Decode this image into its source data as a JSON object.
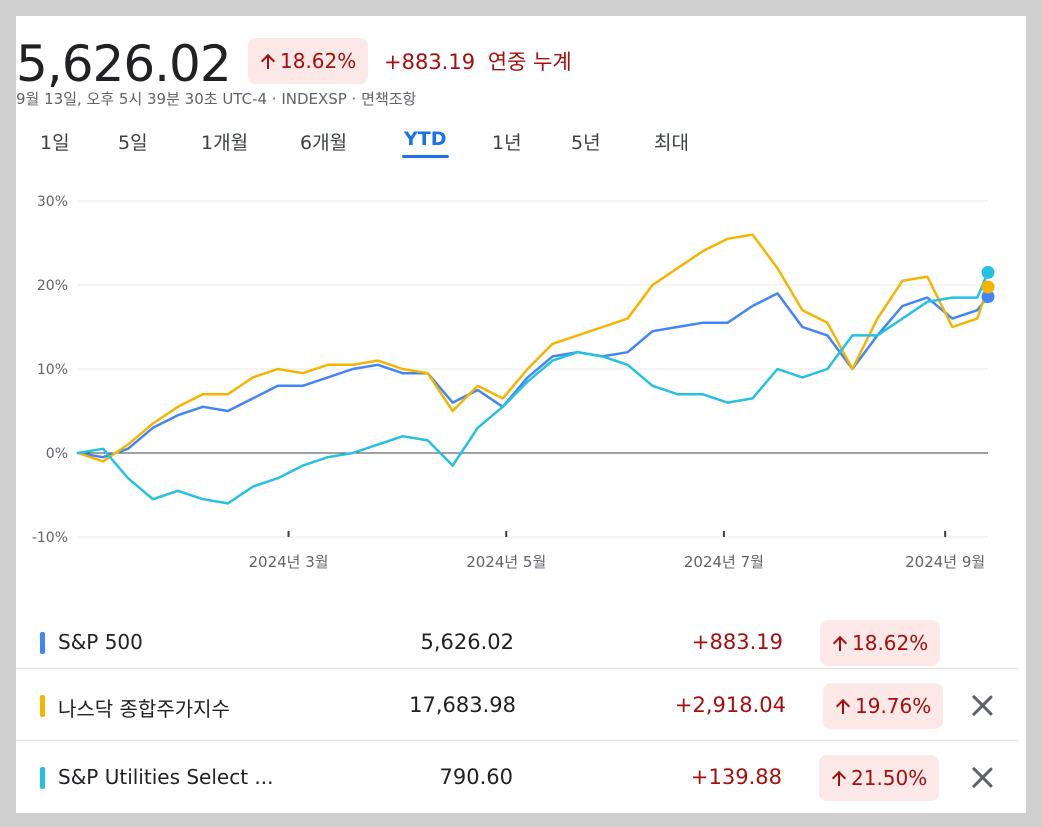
{
  "header": {
    "price": "5,626.02",
    "percent_change": "18.62%",
    "abs_change": "+883.19",
    "period_label": "연중 누계",
    "meta": "9월 13일, 오후 5시 39분 30초 UTC-4 · INDEXSP · 면책조항"
  },
  "tabs": [
    {
      "label": "1일",
      "active": false
    },
    {
      "label": "5일",
      "active": false
    },
    {
      "label": "1개월",
      "active": false
    },
    {
      "label": "6개월",
      "active": false
    },
    {
      "label": "YTD",
      "active": true
    },
    {
      "label": "1년",
      "active": false
    },
    {
      "label": "5년",
      "active": false
    },
    {
      "label": "최대",
      "active": false
    }
  ],
  "chart_data": {
    "type": "line",
    "ylim": [
      -10,
      30
    ],
    "y_ticks": [
      "30%",
      "20%",
      "10%",
      "0%",
      "-10%"
    ],
    "x_ticks": [
      "2024년 3월",
      "2024년 5월",
      "2024년 7월",
      "2024년 9월"
    ],
    "baseline": 0,
    "x": [
      "2024-01-02",
      "2024-01-09",
      "2024-01-16",
      "2024-01-23",
      "2024-01-30",
      "2024-02-06",
      "2024-02-13",
      "2024-02-20",
      "2024-02-27",
      "2024-03-05",
      "2024-03-12",
      "2024-03-19",
      "2024-03-26",
      "2024-04-02",
      "2024-04-09",
      "2024-04-16",
      "2024-04-23",
      "2024-04-30",
      "2024-05-07",
      "2024-05-14",
      "2024-05-21",
      "2024-05-28",
      "2024-06-04",
      "2024-06-11",
      "2024-06-18",
      "2024-06-25",
      "2024-07-02",
      "2024-07-09",
      "2024-07-16",
      "2024-07-23",
      "2024-07-30",
      "2024-08-06",
      "2024-08-13",
      "2024-08-20",
      "2024-08-27",
      "2024-09-03",
      "2024-09-10",
      "2024-09-13"
    ],
    "series": [
      {
        "name": "S&P 500",
        "color": "#4285f4",
        "values": [
          0,
          -0.5,
          0.5,
          3,
          4.5,
          5.5,
          5,
          6.5,
          8,
          8,
          9,
          10,
          10.5,
          9.5,
          9.5,
          6,
          7.5,
          5.5,
          9,
          11.5,
          12,
          11.5,
          12,
          14.5,
          15,
          15.5,
          15.5,
          17.5,
          19,
          15,
          14,
          10,
          14,
          17.5,
          18.5,
          16,
          17,
          18.62
        ]
      },
      {
        "name": "나스닥 종합주가지수",
        "color": "#f4b400",
        "values": [
          0,
          -1,
          1,
          3.5,
          5.5,
          7,
          7,
          9,
          10,
          9.5,
          10.5,
          10.5,
          11,
          10,
          9.5,
          5,
          8,
          6.5,
          10,
          13,
          14,
          15,
          16,
          20,
          22,
          24,
          25.5,
          26,
          22,
          17,
          15.5,
          10,
          16,
          20.5,
          21,
          15,
          16,
          19.76
        ]
      },
      {
        "name": "S&P Utilities Select ...",
        "color": "#24c1e0",
        "values": [
          0,
          0.5,
          -3,
          -5.5,
          -4.5,
          -5.5,
          -6,
          -4,
          -3,
          -1.5,
          -0.5,
          0,
          1,
          2,
          1.5,
          -1.5,
          3,
          5.5,
          8.5,
          11,
          12,
          11.5,
          10.5,
          8,
          7,
          7,
          6,
          6.5,
          10,
          9,
          10,
          14,
          14,
          16,
          18,
          18.5,
          18.5,
          21.5
        ]
      }
    ]
  },
  "rows": [
    {
      "name": "S&P 500",
      "color": "#4285f4",
      "value": "5,626.02",
      "change": "+883.19",
      "percent": "18.62%",
      "removable": false
    },
    {
      "name": "나스닥 종합주가지수",
      "color": "#f4b400",
      "value": "17,683.98",
      "change": "+2,918.04",
      "percent": "19.76%",
      "removable": true
    },
    {
      "name": "S&P Utilities Select ...",
      "color": "#24c1e0",
      "value": "790.60",
      "change": "+139.88",
      "percent": "21.50%",
      "removable": true
    }
  ]
}
